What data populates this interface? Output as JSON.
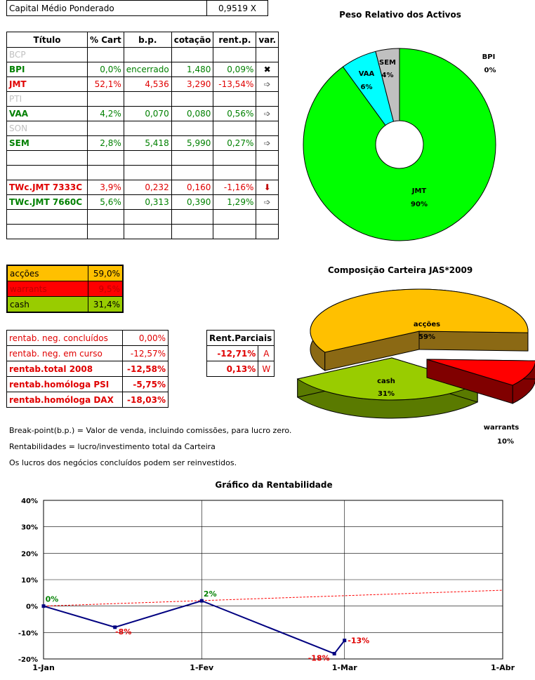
{
  "capital": {
    "label": "Capital Médio Ponderado",
    "value": "0,9519 X"
  },
  "table": {
    "headers": [
      "Título",
      "% Cart",
      "b.p.",
      "cotação",
      "rent.p.",
      "var."
    ],
    "rows": [
      {
        "name": "BCP",
        "pct": "",
        "bp": "",
        "cot": "",
        "rent": "",
        "var": "",
        "cls": "grey"
      },
      {
        "name": "BPI",
        "pct": "0,0%",
        "bp": "encerrado",
        "cot": "1,480",
        "rent": "0,09%",
        "var": "✖",
        "cls": "green"
      },
      {
        "name": "JMT",
        "pct": "52,1%",
        "bp": "4,536",
        "cot": "3,290",
        "rent": "-13,54%",
        "var": "➩",
        "cls": "red"
      },
      {
        "name": "PTI",
        "pct": "",
        "bp": "",
        "cot": "",
        "rent": "",
        "var": "",
        "cls": "grey"
      },
      {
        "name": "VAA",
        "pct": "4,2%",
        "bp": "0,070",
        "cot": "0,080",
        "rent": "0,56%",
        "var": "➩",
        "cls": "green"
      },
      {
        "name": "SON",
        "pct": "",
        "bp": "",
        "cot": "",
        "rent": "",
        "var": "",
        "cls": "grey"
      },
      {
        "name": "SEM",
        "pct": "2,8%",
        "bp": "5,418",
        "cot": "5,990",
        "rent": "0,27%",
        "var": "➩",
        "cls": "green"
      },
      {
        "name": "",
        "pct": "",
        "bp": "",
        "cot": "",
        "rent": "",
        "var": "",
        "cls": ""
      },
      {
        "name": "",
        "pct": "",
        "bp": "",
        "cot": "",
        "rent": "",
        "var": "",
        "cls": ""
      },
      {
        "name": "TWc.JMT 7333C",
        "pct": "3,9%",
        "bp": "0,232",
        "cot": "0,160",
        "rent": "-1,16%",
        "var": "⬇",
        "cls": "red"
      },
      {
        "name": "TWc.JMT 7660C",
        "pct": "5,6%",
        "bp": "0,313",
        "cot": "0,390",
        "rent": "1,29%",
        "var": "➩",
        "cls": "green"
      },
      {
        "name": "",
        "pct": "",
        "bp": "",
        "cot": "",
        "rent": "",
        "var": "",
        "cls": ""
      },
      {
        "name": "",
        "pct": "",
        "bp": "",
        "cot": "",
        "rent": "",
        "var": "",
        "cls": ""
      }
    ]
  },
  "composition_table": [
    {
      "label": "acções",
      "value": "59,0%",
      "color": "#ffc000",
      "text": "#000"
    },
    {
      "label": "warrants",
      "value": "9,5%",
      "color": "#ff0000",
      "text": "#c00000"
    },
    {
      "label": "cash",
      "value": "31,4%",
      "color": "#99cc00",
      "text": "#000"
    }
  ],
  "rentab": [
    {
      "label": "rentab. neg. concluídos",
      "value": "0,00%",
      "bold": false
    },
    {
      "label": "rentab. neg. em curso",
      "value": "-12,57%",
      "bold": false
    },
    {
      "label": "rentab.total 2008",
      "value": "-12,58%",
      "bold": true
    },
    {
      "label": "rentab.homóloga PSI",
      "value": "-5,75%",
      "bold": true
    },
    {
      "label": "rentab.homóloga DAX",
      "value": "-18,03%",
      "bold": true
    }
  ],
  "parciais": {
    "header": "Rent.Parciais",
    "rows": [
      {
        "value": "-12,71%",
        "letter": "A"
      },
      {
        "value": "0,13%",
        "letter": "W"
      }
    ]
  },
  "notes": [
    "Break-point(b.p.) = Valor de venda, incluindo comissões, para lucro zero.",
    "Rentabilidades = lucro/investimento total da Carteira",
    "Os lucros dos negócios concluídos podem ser reinvestidos."
  ],
  "chart_data": [
    {
      "type": "pie",
      "title": "Peso Relativo dos Activos",
      "variant": "doughnut",
      "slices": [
        {
          "label": "JMT",
          "value": 90,
          "pct_label": "90%",
          "color": "#00ff00"
        },
        {
          "label": "VAA",
          "value": 6,
          "pct_label": "6%",
          "color": "#00ffff"
        },
        {
          "label": "SEM",
          "value": 4,
          "pct_label": "4%",
          "color": "#c0c0c0"
        },
        {
          "label": "BPI",
          "value": 0,
          "pct_label": "0%",
          "color": "#ffff00"
        }
      ]
    },
    {
      "type": "pie",
      "title": "Composição Carteira JAS*2009",
      "variant": "3d-exploded",
      "slices": [
        {
          "label": "acções",
          "value": 59,
          "pct_label": "59%",
          "color": "#ffc000"
        },
        {
          "label": "warrants",
          "value": 10,
          "pct_label": "10%",
          "color": "#ff0000"
        },
        {
          "label": "cash",
          "value": 31,
          "pct_label": "31%",
          "color": "#99cc00"
        }
      ]
    },
    {
      "type": "line",
      "title": "Gráfico da Rentabilidade",
      "x_ticks": [
        "1-Jan",
        "1-Fev",
        "1-Mar",
        "1-Abr"
      ],
      "y_ticks": [
        "40%",
        "30%",
        "20%",
        "10%",
        "0%",
        "-10%",
        "-20%"
      ],
      "ylim": [
        -20,
        40
      ],
      "xlim_days": [
        0,
        90
      ],
      "series": [
        {
          "points": [
            {
              "day": 0,
              "y": 0,
              "label": "0%"
            },
            {
              "day": 14,
              "y": -8,
              "label": "-8%"
            },
            {
              "day": 31,
              "y": 2,
              "label": "2%"
            },
            {
              "day": 57,
              "y": -18,
              "label": "-18%"
            },
            {
              "day": 59,
              "y": -13,
              "label": "-13%"
            }
          ],
          "color": "#000080"
        },
        {
          "trend": [
            {
              "day": 0,
              "y": 0
            },
            {
              "day": 90,
              "y": 6
            }
          ],
          "color": "#ff0000",
          "dash": true
        }
      ]
    }
  ]
}
